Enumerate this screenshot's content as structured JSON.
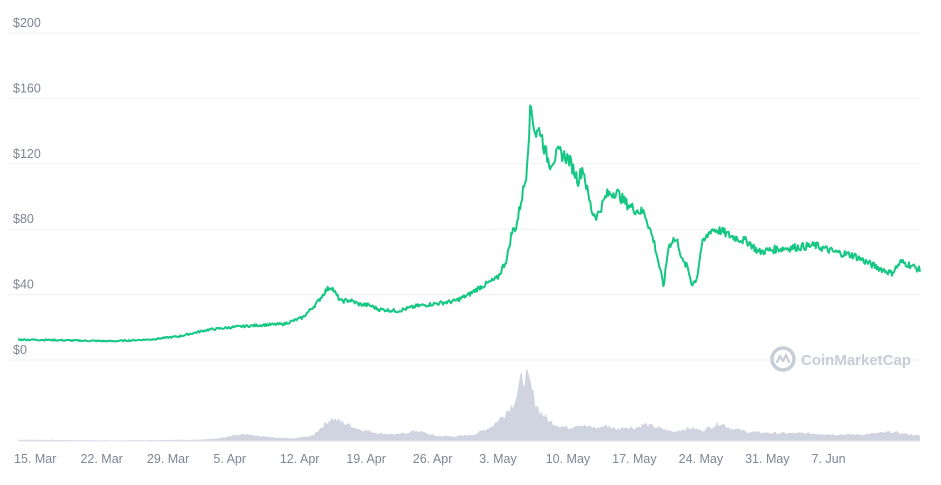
{
  "chart_data": {
    "type": "line",
    "y_unit_prefix": "$",
    "ylim": [
      0,
      200
    ],
    "y_ticks": [
      0,
      40,
      80,
      120,
      160,
      200
    ],
    "y_tick_labels": [
      "$0",
      "$40",
      "$80",
      "$120",
      "$160",
      "$200"
    ],
    "x_tick_labels": [
      "15. Mar",
      "22. Mar",
      "29. Mar",
      "5. Apr",
      "12. Apr",
      "19. Apr",
      "26. Apr",
      "3. May",
      "10. May",
      "17. May",
      "24. May",
      "31. May",
      "7. Jun"
    ],
    "x_range_days": [
      0,
      95
    ],
    "x_tick_days": [
      0,
      7,
      14,
      21,
      28,
      35,
      42,
      49,
      56,
      63,
      70,
      77,
      84
    ],
    "grid": true,
    "series": [
      {
        "color": "#16c784",
        "x_days": [
          0,
          3,
          7,
          10,
          14,
          17,
          20,
          23,
          26,
          28,
          30,
          31.5,
          32.5,
          33,
          33.5,
          34,
          35,
          36,
          37,
          38,
          40,
          42,
          44,
          46,
          47.5,
          48.5,
          49.5,
          50.5,
          51,
          51.5,
          52,
          52.5,
          53,
          53.5,
          54,
          54.5,
          55,
          55.5,
          56,
          57,
          58,
          59,
          59.5,
          60,
          60.5,
          61,
          62,
          63,
          64,
          65,
          66,
          67,
          68,
          68.5,
          69,
          69.5,
          70,
          70.5,
          71,
          71.5,
          72,
          73,
          74,
          75,
          76,
          77,
          78,
          80,
          82,
          84,
          86,
          88,
          90,
          92,
          93,
          94,
          95
        ],
        "values": [
          12.5,
          12.3,
          11.8,
          11.5,
          12.6,
          14.5,
          18.5,
          20.3,
          21.5,
          22.0,
          26.0,
          35.0,
          43.0,
          45.0,
          40.0,
          36.0,
          36.5,
          34.0,
          33.5,
          31.0,
          30.0,
          33.0,
          34.5,
          36.0,
          40.0,
          44.0,
          47.0,
          50.0,
          56.0,
          62.0,
          78.0,
          82.0,
          98.0,
          112.0,
          156.0,
          138.0,
          141.0,
          128.0,
          120.0,
          127.0,
          123.0,
          110.0,
          118.0,
          102.0,
          90.0,
          88.0,
          101.0,
          103.0,
          96.0,
          92.0,
          90.0,
          72.0,
          45.0,
          69.0,
          74.0,
          72.0,
          60.0,
          57.0,
          46.0,
          50.0,
          70.0,
          80.0,
          79.0,
          76.0,
          74.0,
          72.0,
          66.0,
          68.0,
          69.0,
          70.0,
          66.0,
          64.0,
          58.0,
          53.0,
          60.0,
          58.0,
          55.0
        ]
      }
    ],
    "volume": {
      "color": "#c8ccdc",
      "x_days": [
        0,
        5,
        10,
        15,
        19,
        21,
        23,
        24,
        25,
        27,
        29,
        31,
        32,
        33,
        34,
        36,
        38,
        40,
        42,
        44,
        46,
        48,
        49,
        50,
        51,
        52,
        52.5,
        53,
        53.5,
        54,
        54.5,
        55,
        55.5,
        56,
        57,
        58,
        59,
        60,
        61,
        62,
        63,
        64,
        65,
        66,
        67,
        68,
        69,
        70,
        71,
        72,
        73,
        74,
        75,
        77,
        80,
        83,
        86,
        89,
        92,
        95
      ],
      "values": [
        2,
        1.5,
        1,
        1.5,
        2,
        4,
        9,
        12,
        8,
        5,
        4,
        8,
        22,
        35,
        30,
        18,
        12,
        10,
        16,
        8,
        7,
        10,
        16,
        24,
        38,
        55,
        70,
        95,
        100,
        85,
        60,
        45,
        38,
        30,
        24,
        20,
        26,
        22,
        20,
        24,
        18,
        22,
        20,
        26,
        22,
        18,
        14,
        18,
        20,
        16,
        22,
        28,
        20,
        14,
        12,
        12,
        10,
        10,
        14,
        8
      ]
    }
  },
  "watermark": {
    "text": "CoinMarketCap",
    "icon": "coinmarketcap-logo-icon"
  }
}
